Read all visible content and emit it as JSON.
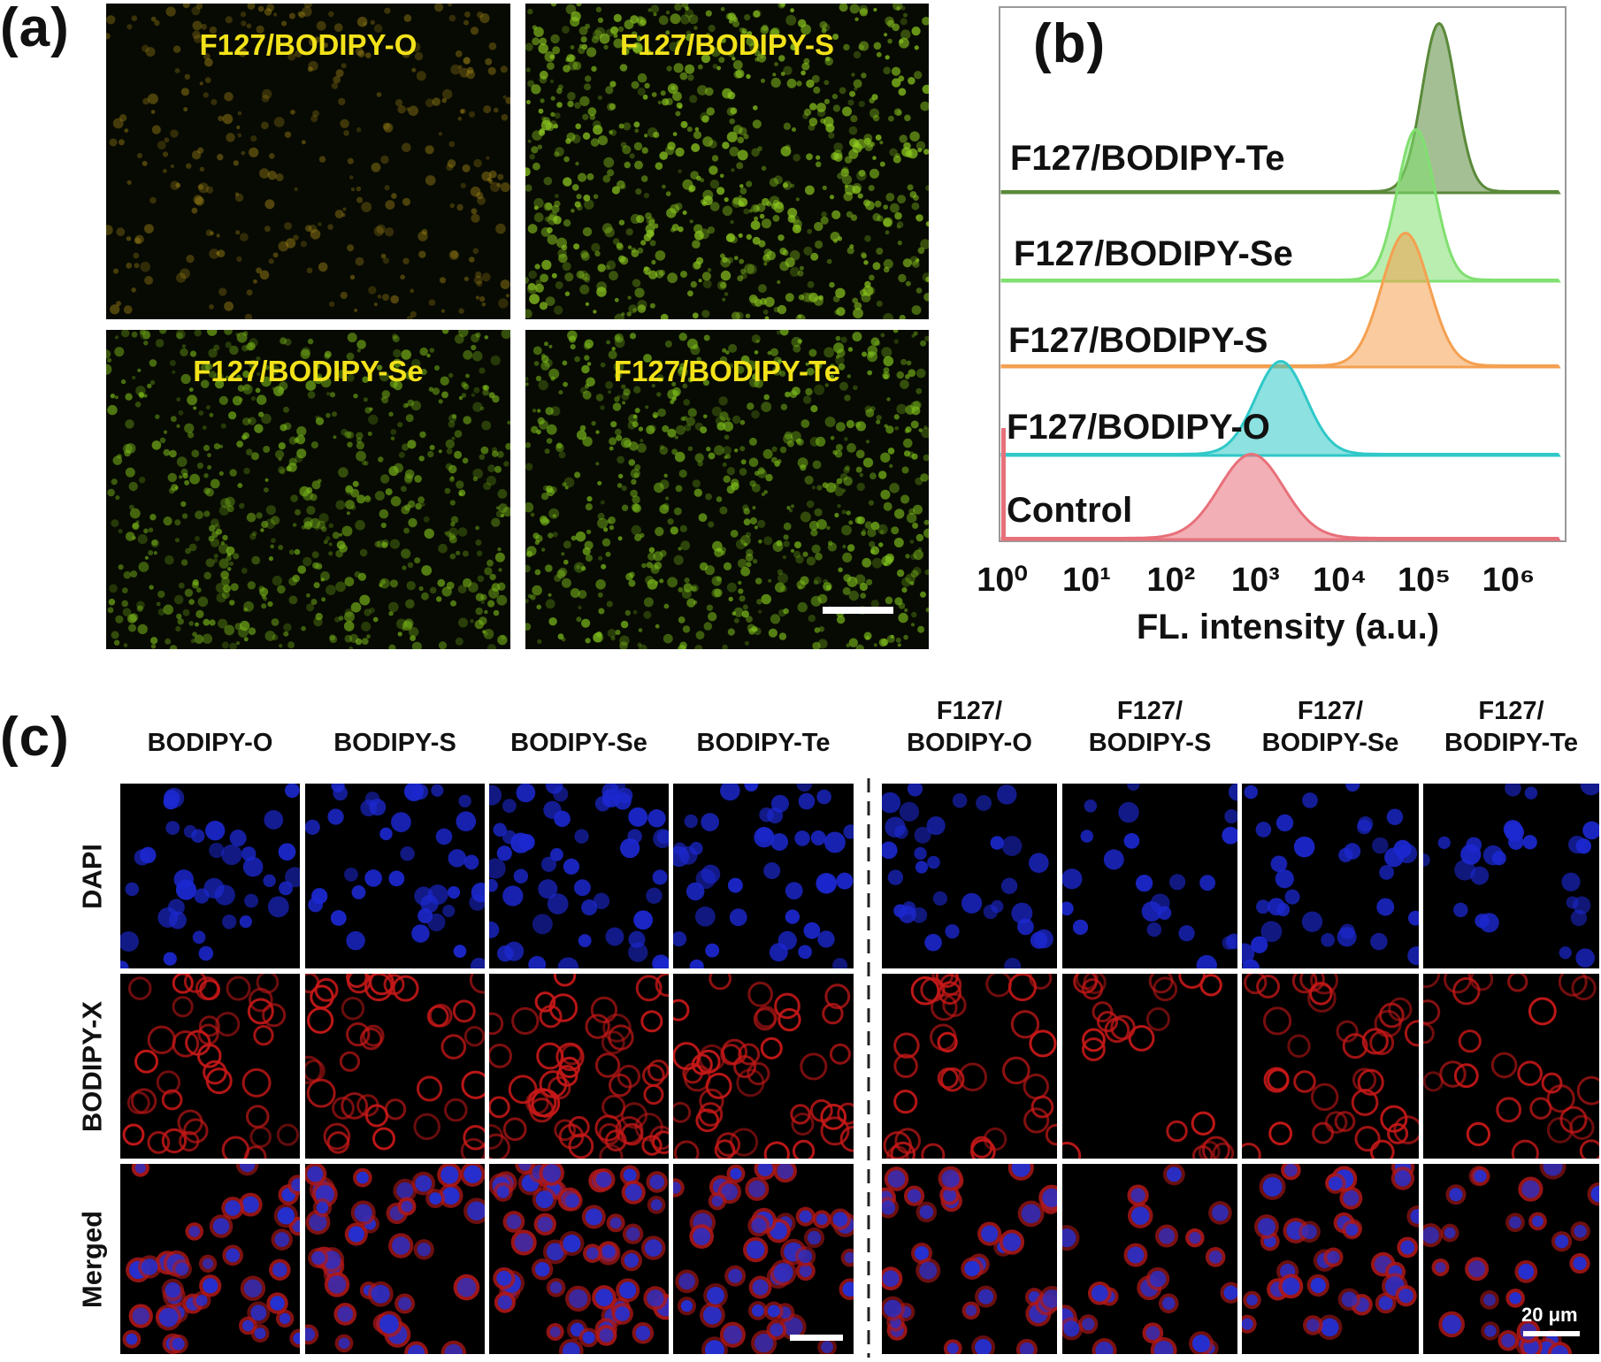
{
  "panel_a": {
    "letter": "(a)",
    "images": [
      {
        "label": "F127/BODIPY-O",
        "tint": "#a88a18",
        "intensity": 0.35
      },
      {
        "label": "F127/BODIPY-S",
        "tint": "#8cc820",
        "intensity": 0.85
      },
      {
        "label": "F127/BODIPY-Se",
        "tint": "#78b41a",
        "intensity": 0.75
      },
      {
        "label": "F127/BODIPY-Te",
        "tint": "#7cbc1c",
        "intensity": 0.8
      }
    ]
  },
  "panel_b": {
    "letter": "(b)",
    "chart_data": {
      "type": "area",
      "xscale": "log",
      "xlabel": "FL. intensity (a.u.)",
      "xlim": [
        1,
        4000000
      ],
      "xtick_labels": [
        "10⁰",
        "10¹",
        "10²",
        "10³",
        "10⁴",
        "10⁵",
        "10⁶"
      ],
      "series": [
        {
          "name": "Control",
          "color": "#e8707a",
          "peak": 900
        },
        {
          "name": "F127/BODIPY-O",
          "color": "#30c8c8",
          "peak": 2000
        },
        {
          "name": "F127/BODIPY-S",
          "color": "#f4a050",
          "peak": 60000
        },
        {
          "name": "F127/BODIPY-Se",
          "color": "#80e070",
          "peak": 80000
        },
        {
          "name": "F127/BODIPY-Te",
          "color": "#5a8a3a",
          "peak": 150000
        }
      ]
    }
  },
  "panel_c": {
    "letter": "(c)",
    "columns": [
      {
        "line1": "",
        "line2": "BODIPY-O"
      },
      {
        "line1": "",
        "line2": "BODIPY-S"
      },
      {
        "line1": "",
        "line2": "BODIPY-Se"
      },
      {
        "line1": "",
        "line2": "BODIPY-Te"
      },
      {
        "line1": "F127/",
        "line2": "BODIPY-O"
      },
      {
        "line1": "F127/",
        "line2": "BODIPY-S"
      },
      {
        "line1": "F127/",
        "line2": "BODIPY-Se"
      },
      {
        "line1": "F127/",
        "line2": "BODIPY-Te"
      }
    ],
    "rows": [
      "DAPI",
      "BODIPY-X",
      "Merged"
    ],
    "scale_label": "20 μm"
  }
}
